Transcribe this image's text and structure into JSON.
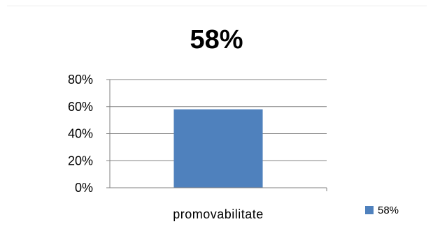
{
  "chart_data": {
    "type": "bar",
    "title": "58%",
    "categories": [
      "promovabilitate"
    ],
    "series": [
      {
        "name": "58%",
        "values": [
          0.58
        ],
        "color": "#4f81bd"
      }
    ],
    "yticks": [
      "0%",
      "20%",
      "40%",
      "60%",
      "80%"
    ],
    "ylim": [
      0,
      0.8
    ],
    "ylabel": "",
    "xlabel": "",
    "grid": true,
    "legend_position": "right"
  },
  "colors": {
    "bar": "#4f81bd",
    "gridline": "#808080",
    "axis": "#808080"
  }
}
